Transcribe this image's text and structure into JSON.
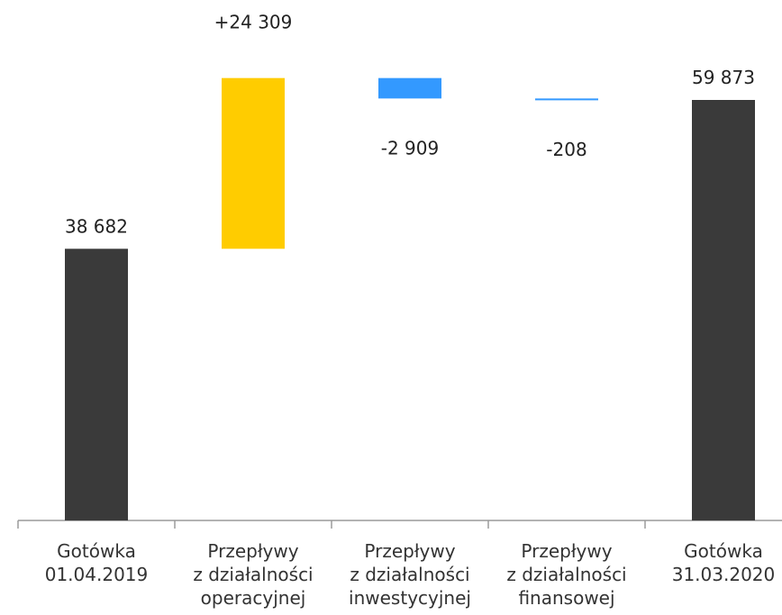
{
  "chart_data": {
    "type": "waterfall",
    "categories": [
      [
        "Gotówka",
        "01.04.2019"
      ],
      [
        "Przepływy",
        "z działalności",
        "operacyjnej"
      ],
      [
        "Przepływy",
        "z działalności",
        "inwestycyjnej"
      ],
      [
        "Przepływy",
        "z działalności",
        "finansowej"
      ],
      [
        "Gotówka",
        "31.03.2020"
      ]
    ],
    "bars": [
      {
        "kind": "total",
        "value": 38682,
        "label": "38 682",
        "color": "#3a3a3a"
      },
      {
        "kind": "delta",
        "value": 24309,
        "label": "+24 309",
        "color": "#ffcc00"
      },
      {
        "kind": "delta",
        "value": -2909,
        "label": "-2 909",
        "color": "#3399ff"
      },
      {
        "kind": "delta",
        "value": -208,
        "label": "-208",
        "color": "#3399ff"
      },
      {
        "kind": "total",
        "value": 59873,
        "label": "59 873",
        "color": "#3a3a3a"
      }
    ],
    "ylim": [
      0,
      65000
    ],
    "grid": false,
    "legend": "none"
  }
}
